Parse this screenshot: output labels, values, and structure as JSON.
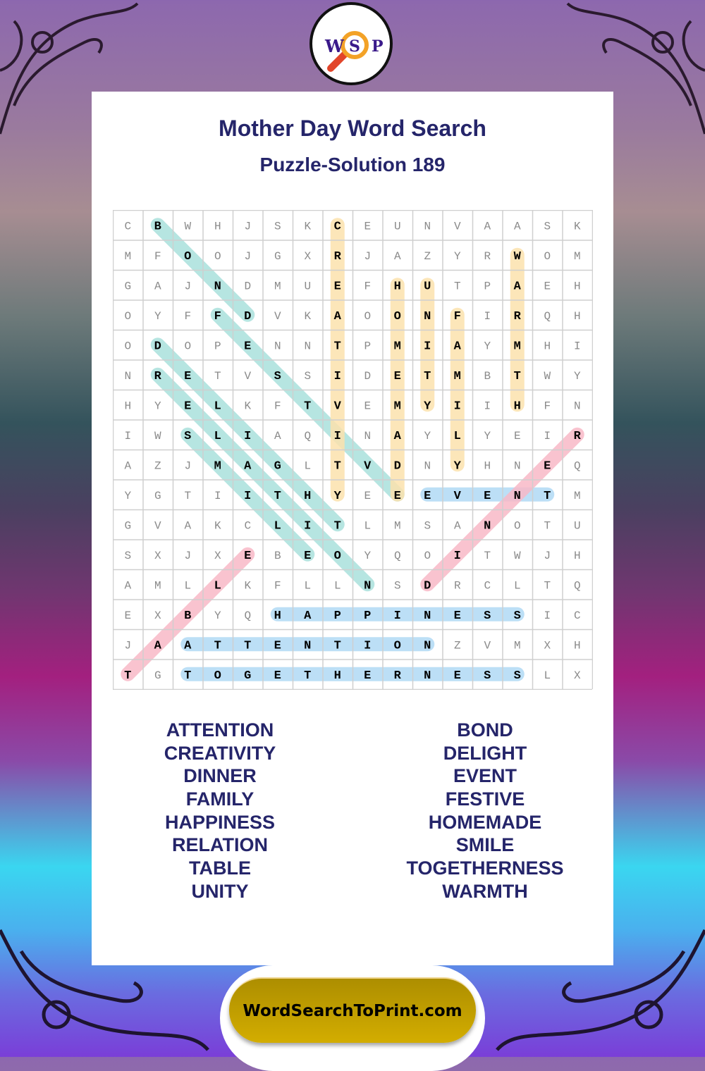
{
  "logo": {
    "letters": [
      "W",
      "S",
      "P"
    ],
    "icon": "magnifier-icon"
  },
  "header": {
    "title": "Mother Day Word Search",
    "subtitle": "Puzzle-Solution 189"
  },
  "grid": {
    "rows": [
      "CBWHJSKCEUNVAASK",
      "MFOOJGXRJAZYRWOM",
      "GAJNDMUEFHUTPAEH",
      "OYFFDVKAOONFIRQH",
      "ODOPENNTPMIAYMHI",
      "NRETVSSIDETMBTWY",
      "HYELKFTVEMYIIHFN",
      "IWSLIAQINAYLYEIR",
      "AZJMAGLTVDNYHNEQ",
      "YGTIITHYEEEVENTM",
      "GVAKCLITLMSANOTU",
      "SXJXEBEOYQOITWJH",
      "AMLLKFLLNSDRCLTQ",
      "EXBYQHAPPINESSIC",
      "JAATTENTIONZVMXH",
      "TGTOGETHERNESSLX"
    ],
    "solutions": [
      {
        "word": "BOND",
        "start": [
          0,
          1
        ],
        "end": [
          3,
          4
        ],
        "color": "teal"
      },
      {
        "word": "FESTIVE",
        "start": [
          3,
          3
        ],
        "end": [
          9,
          9
        ],
        "color": "teal"
      },
      {
        "word": "DELIGHT",
        "start": [
          4,
          1
        ],
        "end": [
          10,
          7
        ],
        "color": "teal"
      },
      {
        "word": "RELATION",
        "start": [
          5,
          1
        ],
        "end": [
          12,
          8
        ],
        "color": "teal"
      },
      {
        "word": "SMILE",
        "start": [
          7,
          2
        ],
        "end": [
          11,
          6
        ],
        "color": "teal"
      },
      {
        "word": "CREATIVITY",
        "start": [
          0,
          7
        ],
        "end": [
          9,
          7
        ],
        "color": "yellow"
      },
      {
        "word": "HOMEMADE",
        "start": [
          2,
          9
        ],
        "end": [
          9,
          9
        ],
        "color": "yellow"
      },
      {
        "word": "UNITY",
        "start": [
          2,
          10
        ],
        "end": [
          6,
          10
        ],
        "color": "yellow"
      },
      {
        "word": "FAMILY",
        "start": [
          3,
          11
        ],
        "end": [
          8,
          11
        ],
        "color": "yellow"
      },
      {
        "word": "WARMTH",
        "start": [
          1,
          13
        ],
        "end": [
          6,
          13
        ],
        "color": "yellow"
      },
      {
        "word": "EVENT",
        "start": [
          9,
          10
        ],
        "end": [
          9,
          14
        ],
        "color": "blue"
      },
      {
        "word": "HAPPINESS",
        "start": [
          13,
          5
        ],
        "end": [
          13,
          13
        ],
        "color": "blue"
      },
      {
        "word": "ATTENTION",
        "start": [
          14,
          2
        ],
        "end": [
          14,
          10
        ],
        "color": "blue"
      },
      {
        "word": "TOGETHERNESS",
        "start": [
          15,
          2
        ],
        "end": [
          15,
          13
        ],
        "color": "blue"
      },
      {
        "word": "DINNER",
        "start": [
          12,
          10
        ],
        "end": [
          7,
          15
        ],
        "color": "pink"
      },
      {
        "word": "TABLE",
        "start": [
          15,
          0
        ],
        "end": [
          11,
          4
        ],
        "color": "pink"
      }
    ]
  },
  "highlight_colors": {
    "teal": "#a9e0dc",
    "yellow": "#fbe2ad",
    "blue": "#b0d9f5",
    "pink": "#f8b9c7"
  },
  "word_list": {
    "left": [
      "ATTENTION",
      "CREATIVITY",
      "DINNER",
      "FAMILY",
      "HAPPINESS",
      "RELATION",
      "TABLE",
      "UNITY"
    ],
    "right": [
      "BOND",
      "DELIGHT",
      "EVENT",
      "FESTIVE",
      "HOMEMADE",
      "SMILE",
      "TOGETHERNESS",
      "WARMTH"
    ]
  },
  "footer": {
    "site": "WordSearchToPrint.com"
  },
  "colors": {
    "title": "#25256a",
    "footer_gold": "#c8a400"
  }
}
